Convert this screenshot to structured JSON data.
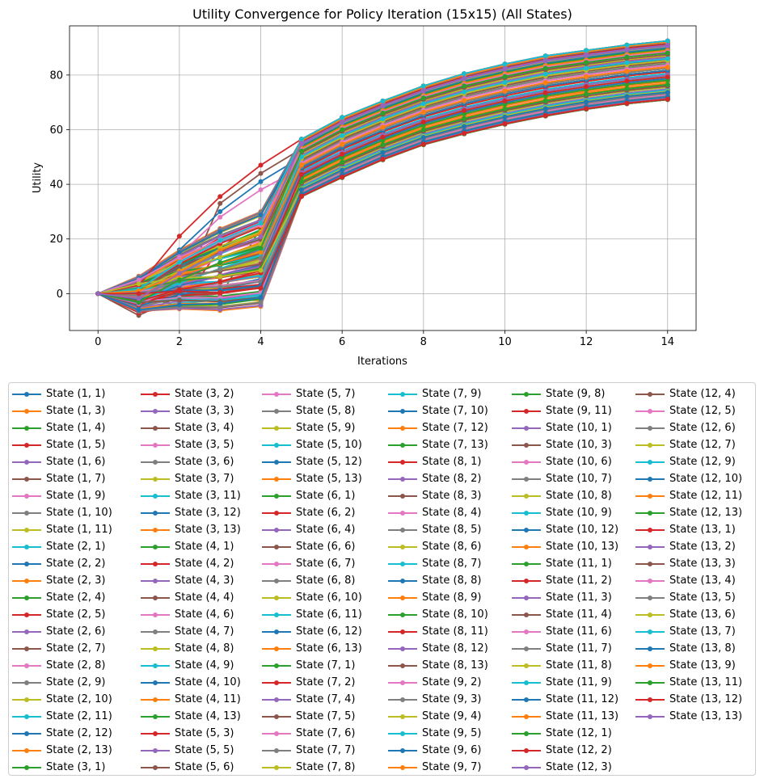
{
  "chart_data": {
    "type": "line",
    "title": "Utility Convergence for Policy Iteration (15x15) (All States)",
    "xlabel": "Iterations",
    "ylabel": "Utility",
    "xlim": [
      -0.7,
      14.7
    ],
    "ylim": [
      -13.5,
      98
    ],
    "xticks": [
      0,
      2,
      4,
      6,
      8,
      10,
      12,
      14
    ],
    "yticks": [
      0,
      20,
      40,
      60,
      80
    ],
    "grid": true,
    "legend_position": "below-plot",
    "legend_columns": 6,
    "x": [
      0,
      1,
      2,
      3,
      4,
      5,
      6,
      7,
      8,
      9,
      10,
      11,
      12,
      13,
      14
    ],
    "color_cycle": [
      "#1f77b4",
      "#ff7f0e",
      "#2ca02c",
      "#d62728",
      "#9467bd",
      "#8c564b",
      "#e377c2",
      "#7f7f7f",
      "#bcbd22",
      "#17becf"
    ],
    "series_names": [
      "State (1, 1)",
      "State (1, 3)",
      "State (1, 4)",
      "State (1, 5)",
      "State (1, 6)",
      "State (1, 7)",
      "State (1, 9)",
      "State (1, 10)",
      "State (1, 11)",
      "State (2, 1)",
      "State (2, 2)",
      "State (2, 3)",
      "State (2, 4)",
      "State (2, 5)",
      "State (2, 6)",
      "State (2, 7)",
      "State (2, 8)",
      "State (2, 9)",
      "State (2, 10)",
      "State (2, 11)",
      "State (2, 12)",
      "State (2, 13)",
      "State (3, 1)",
      "State (3, 2)",
      "State (3, 3)",
      "State (3, 4)",
      "State (3, 5)",
      "State (3, 6)",
      "State (3, 7)",
      "State (3, 11)",
      "State (3, 12)",
      "State (3, 13)",
      "State (4, 1)",
      "State (4, 2)",
      "State (4, 3)",
      "State (4, 4)",
      "State (4, 6)",
      "State (4, 7)",
      "State (4, 8)",
      "State (4, 9)",
      "State (4, 10)",
      "State (4, 11)",
      "State (4, 13)",
      "State (5, 3)",
      "State (5, 5)",
      "State (5, 6)",
      "State (5, 7)",
      "State (5, 8)",
      "State (5, 9)",
      "State (5, 10)",
      "State (5, 12)",
      "State (5, 13)",
      "State (6, 1)",
      "State (6, 2)",
      "State (6, 4)",
      "State (6, 6)",
      "State (6, 7)",
      "State (6, 8)",
      "State (6, 10)",
      "State (6, 11)",
      "State (6, 12)",
      "State (6, 13)",
      "State (7, 1)",
      "State (7, 2)",
      "State (7, 4)",
      "State (7, 5)",
      "State (7, 6)",
      "State (7, 7)",
      "State (7, 8)",
      "State (7, 9)",
      "State (7, 10)",
      "State (7, 12)",
      "State (7, 13)",
      "State (8, 1)",
      "State (8, 2)",
      "State (8, 3)",
      "State (8, 4)",
      "State (8, 5)",
      "State (8, 6)",
      "State (8, 7)",
      "State (8, 8)",
      "State (8, 9)",
      "State (8, 10)",
      "State (8, 11)",
      "State (8, 12)",
      "State (8, 13)",
      "State (9, 2)",
      "State (9, 3)",
      "State (9, 4)",
      "State (9, 5)",
      "State (9, 6)",
      "State (9, 7)",
      "State (9, 8)",
      "State (9, 11)",
      "State (10, 1)",
      "State (10, 3)",
      "State (10, 6)",
      "State (10, 7)",
      "State (10, 8)",
      "State (10, 9)",
      "State (10, 12)",
      "State (10, 13)",
      "State (11, 1)",
      "State (11, 2)",
      "State (11, 3)",
      "State (11, 4)",
      "State (11, 6)",
      "State (11, 7)",
      "State (11, 8)",
      "State (11, 9)",
      "State (11, 12)",
      "State (11, 13)",
      "State (12, 1)",
      "State (12, 2)",
      "State (12, 3)",
      "State (12, 4)",
      "State (12, 5)",
      "State (12, 6)",
      "State (12, 7)",
      "State (12, 9)",
      "State (12, 10)",
      "State (12, 11)",
      "State (12, 13)",
      "State (13, 1)",
      "State (13, 2)",
      "State (13, 3)",
      "State (13, 4)",
      "State (13, 5)",
      "State (13, 6)",
      "State (13, 7)",
      "State (13, 8)",
      "State (13, 9)",
      "State (13, 11)",
      "State (13, 12)",
      "State (13, 13)"
    ],
    "series_estimated": [
      {
        "name": "State (1, 1)",
        "values": [
          0,
          -3,
          -1.5,
          -2.5,
          0.2,
          35.5,
          42.5,
          49,
          54.5,
          58.5,
          62,
          65,
          67.5,
          69.5,
          71
        ]
      },
      {
        "name": "State (1, 3)",
        "values": [
          0,
          -2,
          -1,
          -2,
          -2.5,
          36,
          44,
          50.5,
          56,
          60.5,
          64,
          67,
          69.5,
          71.5,
          73
        ]
      },
      {
        "name": "State (1, 4)",
        "values": [
          0,
          -1,
          -4.5,
          -1,
          24,
          36,
          45,
          52,
          57.5,
          62,
          65.5,
          68.5,
          71,
          73,
          74.5
        ]
      },
      {
        "name": "State (12, 2)",
        "values": [
          0,
          3,
          21,
          35.5,
          47,
          56.5,
          64.5,
          70.5,
          76,
          80.5,
          84,
          87,
          89,
          91,
          92.5
        ]
      },
      {
        "name": "State (3, 5)",
        "values": [
          0,
          5,
          14,
          28,
          38,
          46,
          53,
          58.5,
          63.5,
          67.5,
          71,
          74,
          76.5,
          78.5,
          80
        ]
      },
      {
        "name": "State (2, 7)",
        "values": [
          0,
          -8,
          -1,
          33,
          44,
          53,
          60.5,
          66.5,
          71.5,
          76,
          79.5,
          82.5,
          85,
          87,
          88.5
        ]
      },
      {
        "name": "State (3, 12)",
        "values": [
          0,
          -4,
          16,
          30,
          41,
          50,
          57.5,
          63.5,
          68.5,
          73,
          76.5,
          79.5,
          82,
          84,
          85.5
        ]
      },
      {
        "name": "State (4, 2)",
        "values": [
          0,
          -7,
          -4.5,
          16.5,
          27.5,
          37,
          45,
          51.5,
          57,
          61.5,
          65,
          68,
          70.5,
          72.5,
          74
        ]
      }
    ]
  }
}
